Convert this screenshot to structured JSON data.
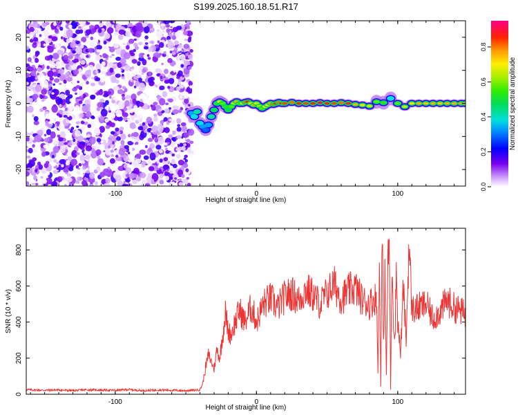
{
  "figure": {
    "title": "S199.2025.160.18.51.R17"
  },
  "chart_data": [
    {
      "type": "heatmap",
      "xlabel": "Height of straight line (km)",
      "ylabel": "Frequency (Hz)",
      "xlim": [
        -163,
        148
      ],
      "ylim": [
        -25,
        25
      ],
      "x_ticks": [
        -100,
        0,
        100
      ],
      "y_ticks": [
        -20,
        -10,
        0,
        10,
        20
      ],
      "colorbar": {
        "label": "Normalized spectral amplitude",
        "range": [
          0,
          0.95
        ],
        "ticks": [
          "0.0",
          "0.2",
          "0.4",
          "0.6",
          "0.8"
        ],
        "colormap": "white-purple-blue-cyan-green-yellow-orange-red-magenta"
      },
      "noise_region": {
        "x": [
          -163,
          -46
        ],
        "y": [
          -25,
          25
        ],
        "amplitude_range": [
          0.0,
          0.2
        ]
      },
      "ridge": {
        "x": [
          -46,
          -44,
          -42,
          -40,
          -38,
          -36,
          -34,
          -32,
          -30,
          -28,
          -26,
          -24,
          -22,
          -20,
          -18,
          -16,
          -14,
          -12,
          -10,
          -8,
          -6,
          -4,
          -2,
          0,
          2,
          4,
          6,
          8,
          10,
          12,
          14,
          16,
          18,
          20,
          25,
          30,
          35,
          40,
          45,
          50,
          55,
          60,
          65,
          70,
          75,
          80,
          85,
          90,
          95,
          100,
          105,
          110,
          115,
          120,
          125,
          130,
          135,
          140,
          145,
          148
        ],
        "y": [
          -3,
          -4,
          -2.5,
          -6,
          -7,
          -8,
          -6.5,
          -4,
          -2,
          0,
          0.5,
          0,
          -1,
          -2,
          -1,
          0,
          0.5,
          0,
          0,
          0.3,
          0.5,
          0,
          -0.5,
          0,
          -0.8,
          -1.5,
          -1,
          -0.5,
          0,
          -0.3,
          0,
          0.3,
          0,
          0,
          0.3,
          0,
          0,
          0,
          0.2,
          0,
          0,
          0.2,
          0,
          -0.3,
          -0.5,
          -0.8,
          0.5,
          0.2,
          1.5,
          0,
          -1,
          0,
          0,
          0,
          0,
          0,
          0,
          0,
          0,
          0
        ],
        "amplitude": [
          0.35,
          0.4,
          0.45,
          0.4,
          0.35,
          0.3,
          0.35,
          0.45,
          0.5,
          0.55,
          0.75,
          0.6,
          0.55,
          0.5,
          0.6,
          0.7,
          0.8,
          0.6,
          0.7,
          0.85,
          0.9,
          0.75,
          0.8,
          0.7,
          0.65,
          0.6,
          0.7,
          0.75,
          0.8,
          0.85,
          0.9,
          0.85,
          0.9,
          0.88,
          0.85,
          0.9,
          0.88,
          0.9,
          0.95,
          0.9,
          0.88,
          0.85,
          0.9,
          0.8,
          0.75,
          0.7,
          0.6,
          0.55,
          0.4,
          0.6,
          0.7,
          0.75,
          0.8,
          0.78,
          0.8,
          0.78,
          0.8,
          0.8,
          0.82,
          0.8
        ]
      }
    },
    {
      "type": "line",
      "xlabel": "Height of straight line (km)",
      "ylabel": "SNR (10 * v/v)",
      "xlim": [
        -163,
        148
      ],
      "ylim": [
        0,
        920
      ],
      "x_ticks": [
        -100,
        0,
        100
      ],
      "y_ticks": [
        0,
        200,
        400,
        600,
        800
      ],
      "series": [
        {
          "color": "#ee3333",
          "x": [
            -163,
            -150,
            -140,
            -130,
            -120,
            -110,
            -100,
            -90,
            -80,
            -70,
            -60,
            -50,
            -45,
            -40,
            -38,
            -36,
            -34,
            -32,
            -30,
            -28,
            -26,
            -24,
            -22,
            -20,
            -18,
            -16,
            -14,
            -12,
            -10,
            -8,
            -6,
            -4,
            -2,
            0,
            5,
            10,
            15,
            20,
            25,
            30,
            35,
            40,
            45,
            50,
            55,
            60,
            65,
            70,
            75,
            80,
            85,
            86,
            87,
            88,
            89,
            90,
            91,
            92,
            93,
            94,
            95,
            96,
            97,
            98,
            99,
            100,
            102,
            104,
            106,
            108,
            110,
            115,
            120,
            125,
            130,
            135,
            140,
            145,
            148
          ],
          "values": [
            25,
            22,
            24,
            20,
            25,
            23,
            22,
            26,
            20,
            24,
            22,
            20,
            22,
            25,
            60,
            150,
            220,
            180,
            140,
            250,
            200,
            320,
            450,
            350,
            330,
            380,
            420,
            470,
            430,
            400,
            440,
            480,
            450,
            400,
            500,
            530,
            480,
            540,
            560,
            520,
            580,
            550,
            500,
            560,
            610,
            530,
            570,
            590,
            520,
            500,
            540,
            120,
            760,
            40,
            890,
            300,
            650,
            100,
            700,
            860,
            30,
            750,
            420,
            300,
            710,
            410,
            220,
            600,
            290,
            850,
            470,
            480,
            500,
            420,
            460,
            520,
            480,
            460,
            440
          ]
        }
      ]
    }
  ]
}
